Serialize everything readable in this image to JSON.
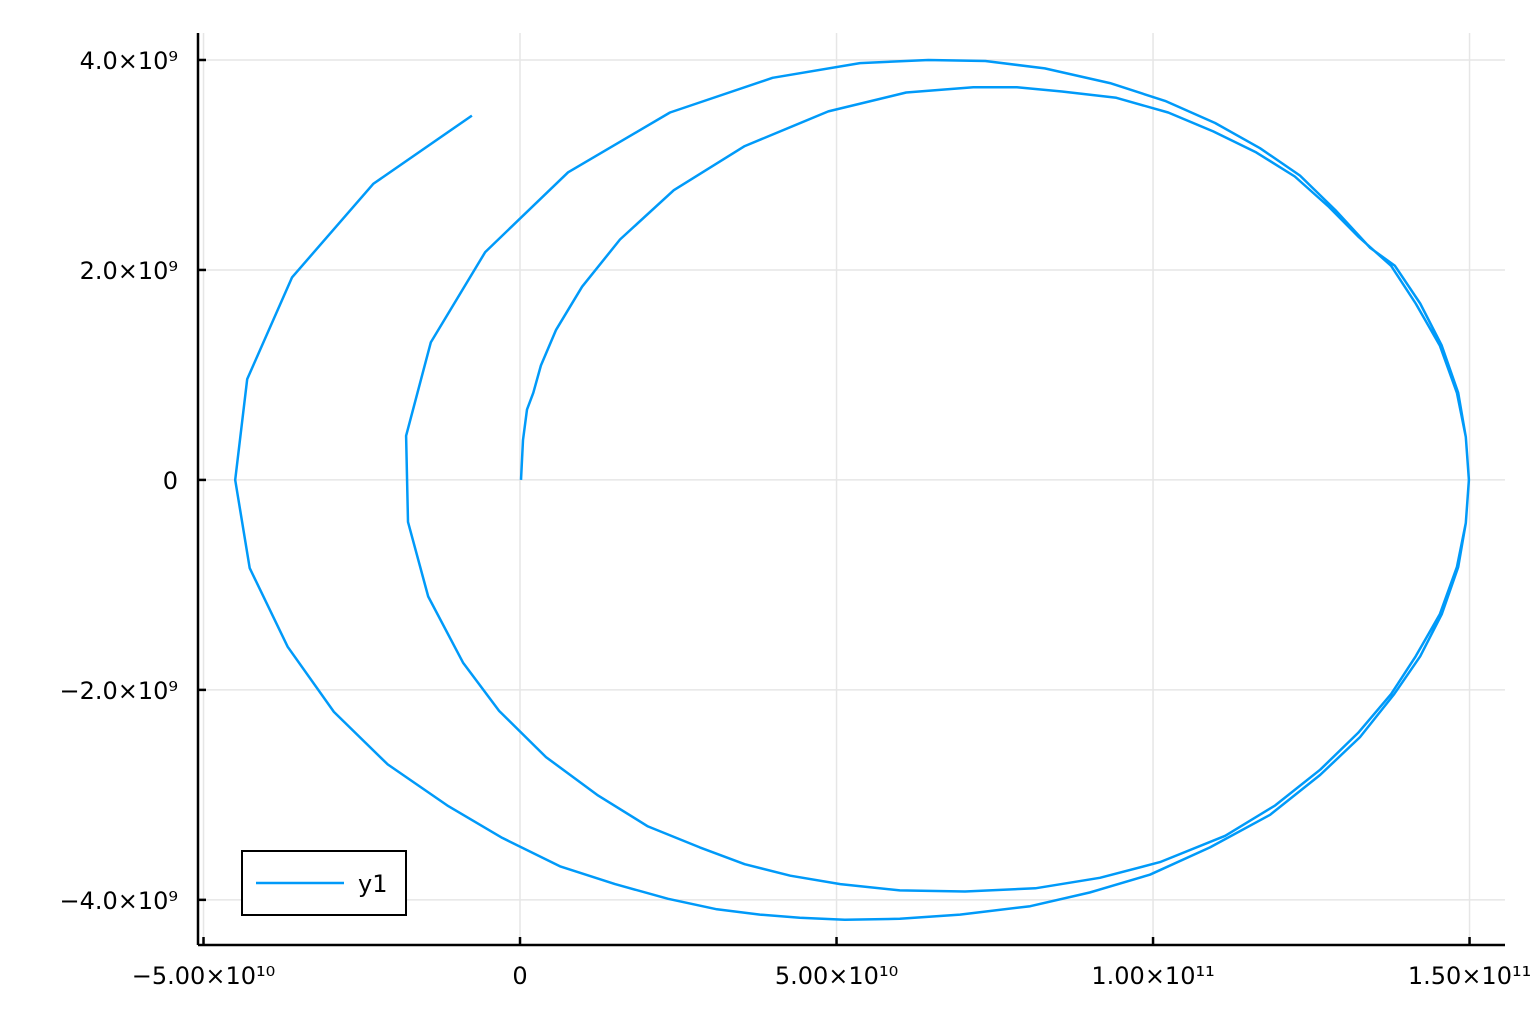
{
  "chart_data": {
    "type": "line",
    "grid": true,
    "legend": "bottom-left",
    "xlim": [
      -50870000000.0,
      155600000000.0
    ],
    "ylim": [
      -4430000000.0,
      4257000000.0
    ],
    "xticks": [
      {
        "value": -50000000000.0,
        "label": "−5.00×10¹⁰"
      },
      0,
      {
        "value": 50000000000.0,
        "label": "5.00×10¹⁰"
      },
      {
        "value": 100000000000.0,
        "label": "1.00×10¹¹"
      },
      {
        "value": 150000000000.0,
        "label": "1.50×10¹¹"
      }
    ],
    "yticks": [
      {
        "value": -4000000000.0,
        "label": "−4.0×10⁹"
      },
      {
        "value": -2000000000.0,
        "label": "−2.0×10⁹"
      },
      0,
      {
        "value": 2000000000.0,
        "label": "2.0×10⁹"
      },
      {
        "value": 4000000000.0,
        "label": "4.0×10⁹"
      }
    ],
    "series": [
      {
        "name": "y1",
        "color": "#009af9",
        "x": [
          160000000.0,
          470000000.0,
          1100000000.0,
          2100000000.0,
          3300000000.0,
          5700000000.0,
          9800000000.0,
          15800000000.0,
          24300000000.0,
          35500000000.0,
          48700000000.0,
          61000000000.0,
          71600000000.0,
          78500000000.0,
          85600000000.0,
          94200000000.0,
          102400000000.0,
          109500000000.0,
          116300000000.0,
          122400000000.0,
          127800000000.0,
          132400000000.0,
          137600000000.0,
          141500000000.0,
          145300000000.0,
          148000000000.0,
          149400000000.0,
          149900000000.0,
          149400000000.0,
          148000000000.0,
          145300000000.0,
          141500000000.0,
          137600000000.0,
          132400000000.0,
          126400000000.0,
          119300000000.0,
          111400000000.0,
          101100000000.0,
          91600000000.0,
          81400000000.0,
          70300000000.0,
          60000000000.0,
          50600000000.0,
          42700000000.0,
          35500000000.0,
          28400000000.0,
          20200000000.0,
          12200000000.0,
          4100000000.0,
          -3300000000.0,
          -9000000000.0,
          -14500000000.0,
          -17700000000.0,
          -18000000000.0,
          -14100000000.0,
          -5500000000.0,
          7600000000.0,
          23700000000.0,
          39900000000.0,
          53700000000.0,
          64500000000.0,
          73500000000.0,
          82900000000.0,
          93200000000.0,
          101900000000.0,
          109800000000.0,
          116900000000.0,
          123200000000.0,
          128800000000.0,
          134300000000.0,
          138200000000.0,
          142200000000.0,
          145600000000.0,
          148200000000.0,
          149400000000.0,
          149900000000.0,
          149400000000.0,
          148200000000.0,
          145600000000.0,
          142200000000.0,
          138100000000.0,
          132700000000.0,
          126400000000.0,
          118500000000.0,
          109000000000.0,
          99500000000.0,
          90000000000.0,
          80600000000.0,
          69500000000.0,
          60000000000.0,
          51300000000.0,
          44200000000.0,
          37900000000.0,
          31100000000.0,
          23400000000.0,
          15000000000.0,
          6300000000.0,
          -2800000000.0,
          -11500000000.0,
          -20900000000.0,
          -29400000000.0,
          -36700000000.0,
          -42700000000.0,
          -45000000000.0,
          -43100000000.0,
          -36000000000.0,
          -23200000000.0,
          -7600000000.0
        ],
        "values": [
          0,
          380000000.0,
          670000000.0,
          830000000.0,
          1090000000.0,
          1430000000.0,
          1840000000.0,
          2290000000.0,
          2760000000.0,
          3180000000.0,
          3510000000.0,
          3690000000.0,
          3740000000.0,
          3740000000.0,
          3700000000.0,
          3640000000.0,
          3500000000.0,
          3320000000.0,
          3120000000.0,
          2890000000.0,
          2600000000.0,
          2320000000.0,
          2040000000.0,
          1680000000.0,
          1280000000.0,
          830000000.0,
          410000000.0,
          0,
          -410000000.0,
          -830000000.0,
          -1280000000.0,
          -1680000000.0,
          -2040000000.0,
          -2410000000.0,
          -2760000000.0,
          -3100000000.0,
          -3390000000.0,
          -3640000000.0,
          -3790000000.0,
          -3890000000.0,
          -3920000000.0,
          -3910000000.0,
          -3850000000.0,
          -3770000000.0,
          -3660000000.0,
          -3500000000.0,
          -3300000000.0,
          -3000000000.0,
          -2640000000.0,
          -2200000000.0,
          -1740000000.0,
          -1110000000.0,
          -400000000.0,
          420000000.0,
          1310000000.0,
          2170000000.0,
          2930000000.0,
          3500000000.0,
          3830000000.0,
          3970000000.0,
          4000000000.0,
          3990000000.0,
          3920000000.0,
          3780000000.0,
          3610000000.0,
          3400000000.0,
          3160000000.0,
          2900000000.0,
          2570000000.0,
          2210000000.0,
          2040000000.0,
          1680000000.0,
          1280000000.0,
          830000000.0,
          410000000.0,
          0,
          -410000000.0,
          -830000000.0,
          -1280000000.0,
          -1680000000.0,
          -2040000000.0,
          -2450000000.0,
          -2810000000.0,
          -3190000000.0,
          -3500000000.0,
          -3760000000.0,
          -3930000000.0,
          -4060000000.0,
          -4140000000.0,
          -4180000000.0,
          -4190000000.0,
          -4170000000.0,
          -4140000000.0,
          -4090000000.0,
          -3990000000.0,
          -3850000000.0,
          -3680000000.0,
          -3410000000.0,
          -3100000000.0,
          -2710000000.0,
          -2210000000.0,
          -1590000000.0,
          -840000000.0,
          0,
          960000000.0,
          1930000000.0,
          2820000000.0,
          3470000000.0
        ]
      }
    ]
  }
}
